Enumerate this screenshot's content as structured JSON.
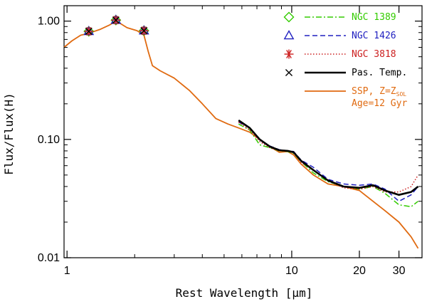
{
  "chart_data": {
    "type": "line",
    "title": "",
    "xlabel": "Rest Wavelength [μm]",
    "ylabel": "Flux/Flux(H)",
    "xscale": "log",
    "yscale": "log",
    "xlim": [
      0.97,
      38
    ],
    "ylim": [
      0.01,
      1.35
    ],
    "xticks": [
      {
        "value": 1,
        "label": "1"
      },
      {
        "value": 10,
        "label": "10"
      },
      {
        "value": 20,
        "label": "20"
      },
      {
        "value": 30,
        "label": "30"
      }
    ],
    "yticks": [
      {
        "value": 1.0,
        "label": "1.00"
      },
      {
        "value": 0.1,
        "label": "0.10"
      },
      {
        "value": 0.01,
        "label": "0.01"
      }
    ],
    "legend_position": "top-right",
    "series": [
      {
        "name": "SSP, Z=Z",
        "name_sub": "SOL",
        "name_line2": "Age=12 Gyr",
        "color": "#e06a10",
        "style": "solid",
        "x": [
          0.97,
          1.05,
          1.15,
          1.25,
          1.4,
          1.55,
          1.65,
          1.72,
          1.85,
          2.05,
          2.2,
          2.3,
          2.4,
          2.6,
          3.0,
          3.5,
          4.0,
          4.6,
          5.2,
          5.8,
          6.5,
          7.2,
          8.0,
          8.8,
          9.6,
          10.2,
          11.0,
          12.5,
          14.5,
          17.0,
          20.0,
          23.0,
          26.0,
          30.0,
          34.0,
          36.5
        ],
        "y": [
          0.6,
          0.68,
          0.76,
          0.79,
          0.85,
          0.93,
          1.0,
          0.96,
          0.88,
          0.83,
          0.76,
          0.55,
          0.42,
          0.38,
          0.33,
          0.26,
          0.2,
          0.15,
          0.135,
          0.125,
          0.115,
          0.1,
          0.087,
          0.078,
          0.079,
          0.074,
          0.062,
          0.05,
          0.042,
          0.04,
          0.037,
          0.03,
          0.025,
          0.02,
          0.015,
          0.012
        ]
      },
      {
        "name": "NGC 1389",
        "color": "#33cc00",
        "style": "dashdot",
        "x": [
          5.8,
          6.5,
          7.2,
          8.0,
          8.8,
          9.6,
          10.2,
          11.0,
          12.5,
          14.5,
          17.0,
          20.0,
          23.0,
          26.0,
          30.0,
          34.0,
          36.5
        ],
        "y": [
          0.135,
          0.12,
          0.09,
          0.085,
          0.08,
          0.079,
          0.076,
          0.065,
          0.052,
          0.044,
          0.04,
          0.038,
          0.04,
          0.035,
          0.028,
          0.027,
          0.03
        ]
      },
      {
        "name": "NGC 1426",
        "color": "#2020c0",
        "style": "dashed",
        "x": [
          5.8,
          6.5,
          7.2,
          8.0,
          8.8,
          9.6,
          10.2,
          11.0,
          12.5,
          14.5,
          17.0,
          20.0,
          23.0,
          26.0,
          30.0,
          34.0,
          36.5
        ],
        "y": [
          0.14,
          0.125,
          0.1,
          0.088,
          0.082,
          0.08,
          0.079,
          0.067,
          0.058,
          0.046,
          0.042,
          0.041,
          0.042,
          0.038,
          0.03,
          0.034,
          0.04
        ]
      },
      {
        "name": "NGC 3818",
        "color": "#cc2020",
        "style": "dotted",
        "x": [
          5.8,
          6.5,
          7.2,
          8.0,
          8.8,
          9.6,
          10.2,
          11.0,
          12.5,
          14.5,
          17.0,
          20.0,
          23.0,
          26.0,
          30.0,
          34.0,
          36.5
        ],
        "y": [
          0.14,
          0.12,
          0.096,
          0.085,
          0.08,
          0.08,
          0.077,
          0.064,
          0.055,
          0.045,
          0.039,
          0.038,
          0.04,
          0.036,
          0.036,
          0.04,
          0.05
        ]
      },
      {
        "name": "Pas. Temp.",
        "color": "#000000",
        "style": "solid-thick",
        "x": [
          5.8,
          6.5,
          7.2,
          8.0,
          8.8,
          9.6,
          10.2,
          11.0,
          12.5,
          14.5,
          17.0,
          20.0,
          23.0,
          26.0,
          30.0,
          34.0,
          36.5
        ],
        "y": [
          0.145,
          0.125,
          0.1,
          0.087,
          0.081,
          0.08,
          0.078,
          0.066,
          0.055,
          0.045,
          0.04,
          0.039,
          0.041,
          0.037,
          0.034,
          0.036,
          0.04
        ]
      }
    ],
    "markers": [
      {
        "name": "NGC 1389",
        "symbol": "diamond",
        "color": "#33cc00",
        "x": [
          1.25,
          1.65,
          2.2
        ],
        "y": [
          0.82,
          1.02,
          0.83
        ]
      },
      {
        "name": "NGC 1426",
        "symbol": "triangle",
        "color": "#2020c0",
        "x": [
          1.25,
          1.65,
          2.2
        ],
        "y": [
          0.82,
          1.02,
          0.83
        ]
      },
      {
        "name": "NGC 3818",
        "symbol": "asterisk",
        "color": "#cc2020",
        "x": [
          1.25,
          1.65,
          2.2
        ],
        "y": [
          0.82,
          1.02,
          0.83
        ]
      },
      {
        "name": "Pas. Temp.",
        "symbol": "x",
        "color": "#000000",
        "x": [
          1.25,
          1.65,
          2.2
        ],
        "y": [
          0.82,
          1.02,
          0.83
        ]
      }
    ],
    "legend": [
      {
        "label": "NGC 1389",
        "color": "#33cc00",
        "symbol": "diamond",
        "line": "dashdot"
      },
      {
        "label": "NGC 1426",
        "color": "#2020c0",
        "symbol": "triangle",
        "line": "dashed"
      },
      {
        "label": "NGC 3818",
        "color": "#cc2020",
        "symbol": "asterisk",
        "line": "dotted"
      },
      {
        "label": "Pas. Temp.",
        "color": "#000000",
        "symbol": "x",
        "line": "solid-thick"
      },
      {
        "label": "SSP, Z=Z",
        "sub": "SOL",
        "label2": "Age=12 Gyr",
        "color": "#e06a10",
        "symbol": "",
        "line": "solid"
      }
    ]
  }
}
